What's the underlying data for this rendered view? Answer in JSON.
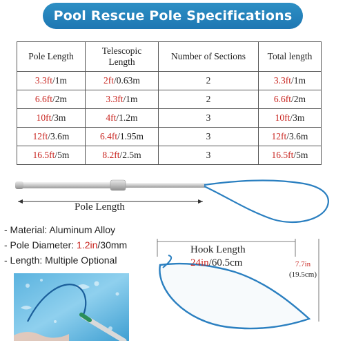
{
  "title": "Pool Rescue Pole Specifications",
  "table": {
    "headers": {
      "pole_length": "Pole Length",
      "telescopic_line1": "Telescopic",
      "telescopic_line2": "Length",
      "sections": "Number of Sections",
      "total": "Total length"
    },
    "rows": [
      {
        "pole_ft": "3.3ft",
        "pole_m": "/1m",
        "tele_ft": "2ft",
        "tele_m": "/0.63m",
        "sections": "2",
        "total_ft": "3.3ft",
        "total_m": "/1m"
      },
      {
        "pole_ft": "6.6ft",
        "pole_m": "/2m",
        "tele_ft": "3.3ft",
        "tele_m": "/1m",
        "sections": "2",
        "total_ft": "6.6ft",
        "total_m": "/2m"
      },
      {
        "pole_ft": "10ft",
        "pole_m": "/3m",
        "tele_ft": "4ft",
        "tele_m": "/1.2m",
        "sections": "3",
        "total_ft": "10ft",
        "total_m": "/3m"
      },
      {
        "pole_ft": "12ft",
        "pole_m": "/3.6m",
        "tele_ft": "6.4ft",
        "tele_m": "/1.95m",
        "sections": "3",
        "total_ft": "12ft",
        "total_m": "/3.6m"
      },
      {
        "pole_ft": "16.5ft",
        "pole_m": "/5m",
        "tele_ft": "8.2ft",
        "tele_m": "/2.5m",
        "sections": "3",
        "total_ft": "16.5ft",
        "total_m": "/5m"
      }
    ]
  },
  "pole_label": "Pole Length",
  "features": {
    "material_prefix": "- Material: Aluminum Alloy",
    "diameter_prefix": "- Pole Diameter: ",
    "diameter_in": "1.2in",
    "diameter_mm": "/30mm",
    "length": "- Length: Multiple Optional"
  },
  "hook": {
    "label": "Hook Length",
    "length_in": "24in",
    "length_cm": "/60.5cm",
    "width_in": "7.7in",
    "width_cm": "(19.5cm)"
  },
  "colors": {
    "banner": "#2d8fc4",
    "accent_red": "#c8241f",
    "hook_blue": "#2a7fc0",
    "water": "#6fc0e6"
  }
}
